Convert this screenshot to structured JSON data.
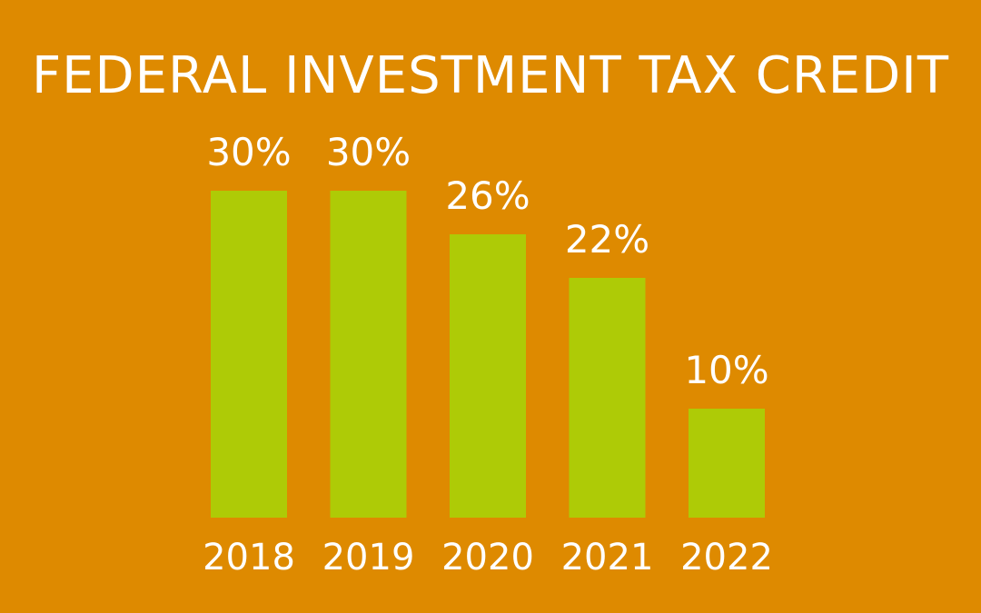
{
  "chart_data": {
    "type": "bar",
    "title": "FEDERAL INVESTMENT TAX CREDIT",
    "categories": [
      "2018",
      "2019",
      "2020",
      "2021",
      "2022"
    ],
    "values": [
      30,
      30,
      26,
      22,
      10
    ],
    "value_labels": [
      "30%",
      "30%",
      "26%",
      "22%",
      "10%"
    ],
    "unit": "%",
    "xlabel": "",
    "ylabel": "",
    "ylim": [
      0,
      30
    ],
    "grid": false,
    "axes_visible": false,
    "legend": "none",
    "colors": {
      "background": "#DE8A00",
      "bar": "#AECB06",
      "text": "#FFFFFF"
    }
  }
}
